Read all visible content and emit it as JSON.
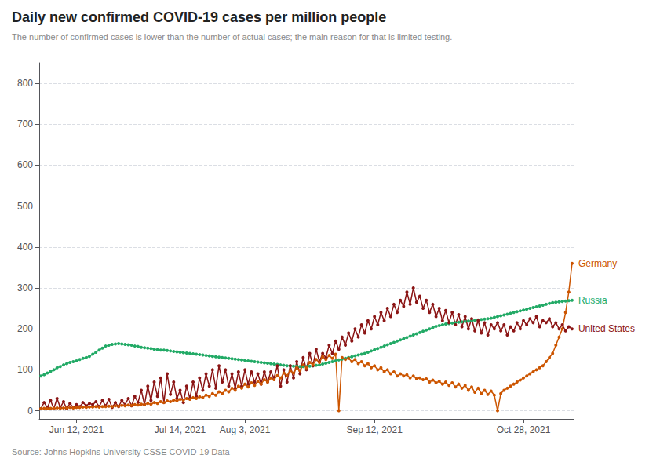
{
  "chart_data": {
    "type": "line",
    "title": "Daily new confirmed COVID-19 cases per million people",
    "subtitle": "The number of confirmed cases is lower than the number of actual cases; the main reason for that is limited testing.",
    "source": "Source: Johns Hopkins University CSSE COVID-19 Data",
    "categories": [
      null,
      null,
      null,
      null,
      null,
      null,
      null,
      null,
      null,
      null,
      null,
      "Jun 12, 2021",
      null,
      null,
      null,
      null,
      null,
      null,
      null,
      null,
      null,
      null,
      null,
      null,
      null,
      null,
      null,
      null,
      null,
      null,
      null,
      null,
      null,
      null,
      null,
      null,
      null,
      null,
      null,
      null,
      null,
      null,
      null,
      "Jul 14, 2021",
      null,
      null,
      null,
      null,
      null,
      null,
      null,
      null,
      null,
      null,
      null,
      null,
      null,
      null,
      null,
      null,
      null,
      null,
      null,
      "Aug 3, 2021",
      null,
      null,
      null,
      null,
      null,
      null,
      null,
      null,
      null,
      null,
      null,
      null,
      null,
      null,
      null,
      null,
      null,
      null,
      null,
      null,
      null,
      null,
      null,
      null,
      null,
      null,
      null,
      null,
      null,
      null,
      null,
      null,
      null,
      null,
      null,
      null,
      null,
      null,
      null,
      "Sep 12, 2021",
      null,
      null,
      null,
      null,
      null,
      null,
      null,
      null,
      null,
      null,
      null,
      null,
      null,
      null,
      null,
      null,
      null,
      null,
      null,
      null,
      null,
      null,
      null,
      null,
      null,
      null,
      null,
      null,
      null,
      null,
      null,
      null,
      null,
      null,
      null,
      null,
      null,
      null,
      null,
      null,
      null,
      null,
      null,
      null,
      null,
      "Oct 28, 2021",
      null,
      null,
      null,
      null,
      null,
      null,
      null,
      null,
      null,
      null,
      null,
      null,
      null,
      null,
      null
    ],
    "series": [
      {
        "name": "Russia",
        "color": "#22aa66",
        "marker": "circle",
        "values": [
          85,
          88,
          92,
          96,
          100,
          105,
          108,
          112,
          115,
          118,
          120,
          122,
          125,
          128,
          130,
          133,
          138,
          143,
          148,
          153,
          158,
          160,
          162,
          163,
          164,
          163,
          162,
          161,
          160,
          158,
          157,
          155,
          154,
          153,
          152,
          150,
          149,
          148,
          148,
          147,
          146,
          145,
          144,
          143,
          142,
          141,
          140,
          139,
          138,
          137,
          136,
          135,
          134,
          133,
          132,
          131,
          130,
          129,
          128,
          127,
          126,
          125,
          124,
          123,
          122,
          121,
          120,
          119,
          118,
          117,
          116,
          115,
          114,
          113,
          112,
          111,
          110,
          110,
          109,
          109,
          108,
          108,
          108,
          109,
          110,
          111,
          112,
          114,
          116,
          118,
          120,
          122,
          124,
          126,
          128,
          130,
          132,
          134,
          136,
          138,
          140,
          143,
          146,
          149,
          152,
          155,
          158,
          161,
          164,
          167,
          170,
          173,
          176,
          179,
          182,
          185,
          188,
          191,
          194,
          197,
          200,
          203,
          206,
          208,
          210,
          212,
          213,
          214,
          215,
          216,
          217,
          218,
          219,
          220,
          221,
          222,
          223,
          224,
          225,
          226,
          228,
          230,
          232,
          234,
          236,
          238,
          240,
          242,
          244,
          246,
          248,
          250,
          252,
          254,
          256,
          258,
          260,
          262,
          264,
          265,
          266,
          267,
          268,
          269,
          270
        ]
      },
      {
        "name": "United States",
        "color": "#8B1515",
        "marker": "circle",
        "values": [
          5,
          20,
          8,
          25,
          5,
          30,
          8,
          22,
          5,
          18,
          8,
          15,
          10,
          20,
          12,
          18,
          15,
          22,
          10,
          25,
          12,
          28,
          8,
          20,
          10,
          25,
          15,
          30,
          12,
          35,
          20,
          50,
          15,
          60,
          25,
          70,
          35,
          80,
          20,
          90,
          40,
          70,
          30,
          50,
          20,
          60,
          30,
          70,
          35,
          80,
          50,
          90,
          60,
          100,
          55,
          110,
          70,
          100,
          60,
          90,
          55,
          95,
          60,
          100,
          65,
          95,
          70,
          90,
          65,
          95,
          70,
          95,
          80,
          110,
          60,
          100,
          70,
          110,
          80,
          120,
          90,
          130,
          100,
          140,
          110,
          150,
          120,
          140,
          130,
          160,
          140,
          170,
          150,
          180,
          160,
          190,
          170,
          200,
          180,
          210,
          190,
          220,
          200,
          230,
          210,
          240,
          220,
          250,
          230,
          260,
          240,
          270,
          255,
          290,
          260,
          300,
          265,
          280,
          250,
          270,
          240,
          260,
          230,
          250,
          220,
          245,
          215,
          240,
          210,
          235,
          205,
          230,
          200,
          225,
          195,
          220,
          190,
          215,
          185,
          210,
          200,
          215,
          195,
          210,
          185,
          205,
          195,
          215,
          200,
          220,
          210,
          225,
          215,
          230,
          205,
          220,
          215,
          225,
          205,
          215,
          200,
          210,
          195,
          205,
          200
        ]
      },
      {
        "name": "Germany",
        "color": "#cc5500",
        "marker": "circle",
        "values": [
          5,
          6,
          5,
          6,
          6,
          7,
          6,
          7,
          7,
          8,
          7,
          8,
          8,
          9,
          8,
          9,
          9,
          10,
          9,
          10,
          10,
          11,
          10,
          12,
          11,
          13,
          12,
          14,
          13,
          15,
          14,
          16,
          15,
          18,
          16,
          20,
          18,
          22,
          20,
          24,
          22,
          26,
          24,
          28,
          26,
          30,
          28,
          32,
          30,
          34,
          32,
          38,
          35,
          42,
          38,
          46,
          42,
          50,
          46,
          55,
          50,
          60,
          55,
          65,
          58,
          68,
          62,
          72,
          65,
          76,
          70,
          80,
          76,
          86,
          80,
          92,
          86,
          98,
          92,
          105,
          98,
          112,
          105,
          118,
          112,
          125,
          118,
          132,
          125,
          135,
          128,
          138,
          0,
          130,
          125,
          128,
          120,
          125,
          115,
          120,
          110,
          115,
          105,
          110,
          100,
          105,
          95,
          100,
          90,
          95,
          85,
          90,
          85,
          88,
          80,
          85,
          78,
          80,
          76,
          78,
          70,
          75,
          68,
          72,
          65,
          70,
          62,
          68,
          58,
          65,
          55,
          62,
          50,
          58,
          45,
          55,
          42,
          50,
          40,
          48,
          38,
          0,
          42,
          50,
          55,
          60,
          65,
          70,
          75,
          80,
          85,
          90,
          95,
          100,
          105,
          110,
          120,
          130,
          140,
          160,
          180,
          200,
          240,
          290,
          360
        ]
      }
    ],
    "ylim": [
      -20,
      850
    ],
    "yticks": [
      0,
      100,
      200,
      300,
      400,
      500,
      600,
      700,
      800
    ],
    "grid": true
  }
}
